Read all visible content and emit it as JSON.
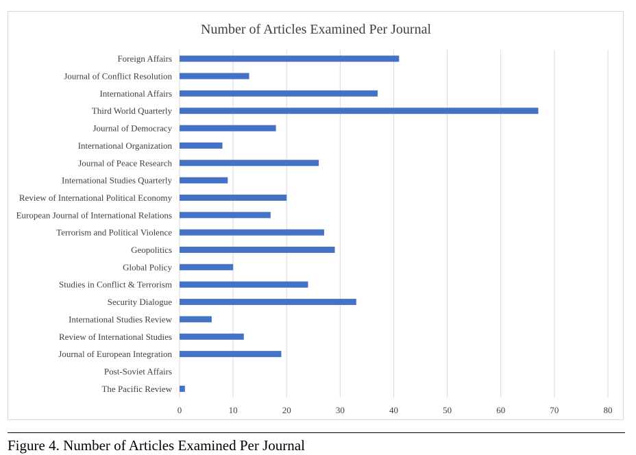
{
  "figure_caption": "Figure 4. Number of Articles Examined Per Journal",
  "chart_data": {
    "type": "bar",
    "orientation": "horizontal",
    "title": "Number of Articles Examined Per Journal",
    "xlabel": "",
    "ylabel": "",
    "xlim": [
      0,
      80
    ],
    "xticks": [
      0,
      10,
      20,
      30,
      40,
      50,
      60,
      70,
      80
    ],
    "grid": "vertical",
    "bar_color": "#4472c4",
    "categories": [
      "Foreign Affairs",
      "Journal of Conflict Resolution",
      "International Affairs",
      "Third World Quarterly",
      "Journal of Democracy",
      "International Organization",
      "Journal of Peace Research",
      "International Studies Quarterly",
      "Review of International Political Economy",
      "European Journal of International Relations",
      "Terrorism and Political Violence",
      "Geopolitics",
      "Global Policy",
      "Studies in Conflict & Terrorism",
      "Security Dialogue",
      "International Studies Review",
      "Review of International Studies",
      "Journal of European Integration",
      "Post-Soviet Affairs",
      "The Pacific Review"
    ],
    "values": [
      41,
      13,
      37,
      67,
      18,
      8,
      26,
      9,
      20,
      17,
      27,
      29,
      10,
      24,
      33,
      6,
      12,
      19,
      0,
      1
    ]
  }
}
